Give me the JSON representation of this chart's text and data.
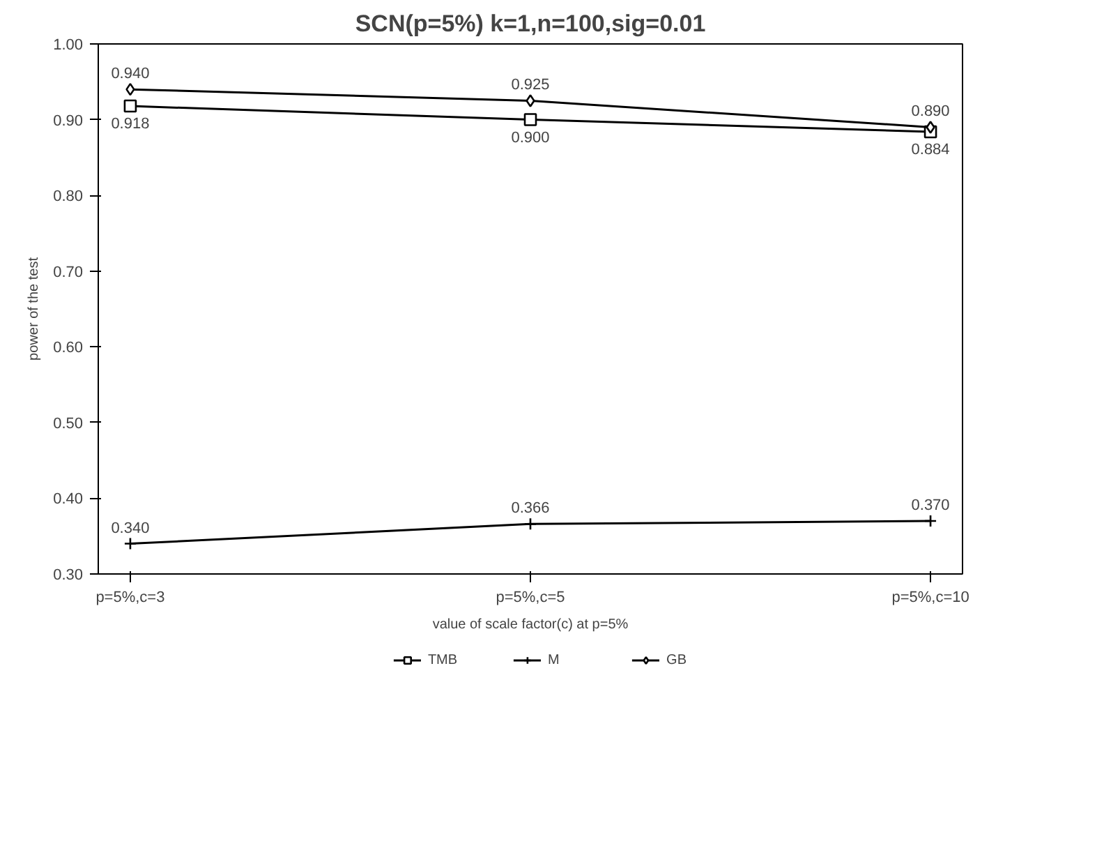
{
  "chart_data": {
    "type": "line",
    "title": "SCN(p=5%) k=1,n=100,sig=0.01",
    "xlabel": "value of scale factor(c) at p=5%",
    "ylabel": "power of the test",
    "categories": [
      "p=5%,c=3",
      "p=5%,c=5",
      "p=5%,c=10"
    ],
    "ylim": [
      0.3,
      1.0
    ],
    "yticks": [
      {
        "value": 0.3,
        "label": "0.30"
      },
      {
        "value": 0.4,
        "label": "0.40"
      },
      {
        "value": 0.5,
        "label": "0.50"
      },
      {
        "value": 0.6,
        "label": "0.60"
      },
      {
        "value": 0.7,
        "label": "0.70"
      },
      {
        "value": 0.8,
        "label": "0.80"
      },
      {
        "value": 0.9,
        "label": "0.90"
      },
      {
        "value": 1.0,
        "label": "1.00"
      }
    ],
    "series": [
      {
        "name": "TMB",
        "color": "#000000",
        "marker": "square",
        "values": [
          0.918,
          0.9,
          0.884
        ],
        "value_labels": [
          "0.918",
          "0.900",
          "0.884"
        ]
      },
      {
        "name": "M",
        "color": "#000000",
        "marker": "cross",
        "values": [
          0.34,
          0.366,
          0.37
        ],
        "value_labels": [
          "0.340",
          "0.366",
          "0.370"
        ]
      },
      {
        "name": "GB",
        "color": "#000000",
        "marker": "diamond",
        "values": [
          0.94,
          0.925,
          0.89
        ],
        "value_labels": [
          "0.940",
          "0.925",
          "0.890"
        ]
      }
    ],
    "grid": false,
    "legend": "bottom",
    "line_style": "solid"
  }
}
